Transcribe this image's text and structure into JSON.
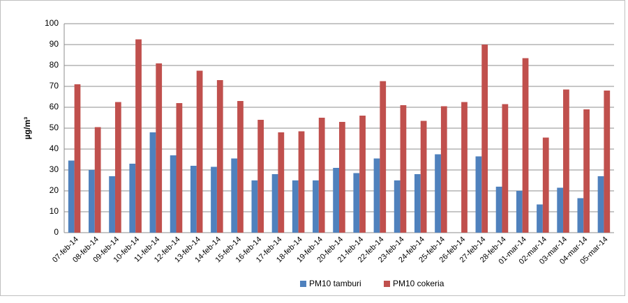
{
  "chart_data": {
    "type": "bar",
    "ylabel": "µg/m³",
    "categories": [
      "07-feb-14",
      "08-feb-14",
      "09-feb-14",
      "10-feb-14",
      "11-feb-14",
      "12-feb-14",
      "13-feb-14",
      "14-feb-14",
      "15-feb-14",
      "16-feb-14",
      "17-feb-14",
      "18-feb-14",
      "19-feb-14",
      "20-feb-14",
      "21-feb-14",
      "22-feb-14",
      "23-feb-14",
      "24-feb-14",
      "25-feb-14",
      "26-feb-14",
      "27-feb-14",
      "28-feb-14",
      "01-mar-14",
      "02-mar-14",
      "03-mar-14",
      "04-mar-14",
      "05-mar-14"
    ],
    "series": [
      {
        "name": "PM10 tamburi",
        "color": "#4f81bd",
        "values": [
          34.5,
          30,
          27,
          33,
          48,
          37,
          32,
          31.5,
          35.5,
          25,
          28,
          25,
          25,
          31,
          28.5,
          35.5,
          25,
          28,
          37.5,
          null,
          36.5,
          22,
          20,
          13.5,
          21.5,
          16.5,
          27
        ]
      },
      {
        "name": "PM10 cokeria",
        "color": "#c0504d",
        "values": [
          71,
          50.5,
          62.5,
          92.5,
          81,
          62,
          77.5,
          73,
          63,
          54,
          48,
          48.5,
          55,
          53,
          56,
          72.5,
          61,
          53.5,
          60.5,
          62.5,
          90,
          61.5,
          83.5,
          45.5,
          68.5,
          59,
          68
        ]
      }
    ],
    "ylim": [
      0,
      100
    ],
    "yticks": [
      0,
      10,
      20,
      30,
      40,
      50,
      60,
      70,
      80,
      90,
      100
    ],
    "grid": true,
    "legend": "bottom"
  }
}
